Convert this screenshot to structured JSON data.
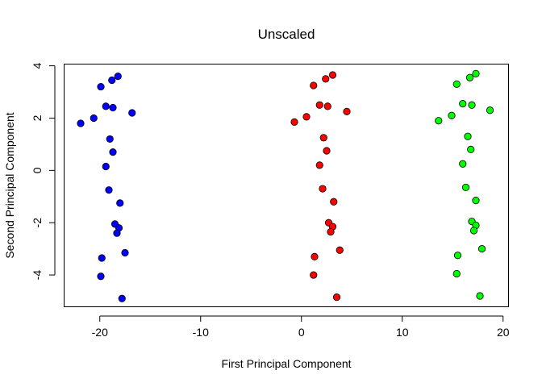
{
  "chart_data": {
    "type": "scatter",
    "title": "Unscaled",
    "xlabel": "First Principal Component",
    "ylabel": "Second Principal Component",
    "xlim": [
      -23.5,
      20.5
    ],
    "ylim": [
      -5.2,
      4.05
    ],
    "xticks": [
      -20,
      -10,
      0,
      10,
      20
    ],
    "yticks": [
      -4,
      -2,
      0,
      2,
      4
    ],
    "xtick_labels": [
      "-20",
      "-10",
      "0",
      "10",
      "20"
    ],
    "ytick_labels": [
      "-4",
      "-2",
      "0",
      "2",
      "4"
    ],
    "grid": false,
    "legend": "none",
    "series": [
      {
        "color": "#0000ff",
        "points": [
          [
            -18.2,
            3.6
          ],
          [
            -18.8,
            3.45
          ],
          [
            -19.9,
            3.2
          ],
          [
            -19.4,
            2.45
          ],
          [
            -18.7,
            2.4
          ],
          [
            -16.8,
            2.2
          ],
          [
            -20.6,
            2.0
          ],
          [
            -21.9,
            1.8
          ],
          [
            -19.0,
            1.2
          ],
          [
            -18.7,
            0.7
          ],
          [
            -19.4,
            0.15
          ],
          [
            -19.1,
            -0.75
          ],
          [
            -18.0,
            -1.25
          ],
          [
            -18.5,
            -2.05
          ],
          [
            -18.1,
            -2.2
          ],
          [
            -18.3,
            -2.4
          ],
          [
            -17.5,
            -3.15
          ],
          [
            -19.8,
            -3.35
          ],
          [
            -19.9,
            -4.05
          ],
          [
            -17.8,
            -4.9
          ]
        ]
      },
      {
        "color": "#ff0000",
        "points": [
          [
            3.1,
            3.65
          ],
          [
            2.4,
            3.5
          ],
          [
            1.2,
            3.25
          ],
          [
            1.8,
            2.5
          ],
          [
            2.6,
            2.45
          ],
          [
            4.5,
            2.25
          ],
          [
            0.5,
            2.05
          ],
          [
            -0.7,
            1.85
          ],
          [
            2.2,
            1.25
          ],
          [
            2.5,
            0.75
          ],
          [
            1.8,
            0.2
          ],
          [
            2.1,
            -0.7
          ],
          [
            3.2,
            -1.2
          ],
          [
            2.7,
            -2.0
          ],
          [
            3.1,
            -2.15
          ],
          [
            2.9,
            -2.35
          ],
          [
            3.8,
            -3.05
          ],
          [
            1.3,
            -3.3
          ],
          [
            1.2,
            -4.0
          ],
          [
            3.5,
            -4.85
          ]
        ]
      },
      {
        "color": "#00ff00",
        "points": [
          [
            17.3,
            3.7
          ],
          [
            16.7,
            3.55
          ],
          [
            15.4,
            3.3
          ],
          [
            16.0,
            2.55
          ],
          [
            16.9,
            2.5
          ],
          [
            18.7,
            2.3
          ],
          [
            14.9,
            2.1
          ],
          [
            13.6,
            1.9
          ],
          [
            16.5,
            1.3
          ],
          [
            16.8,
            0.8
          ],
          [
            16.0,
            0.25
          ],
          [
            16.3,
            -0.65
          ],
          [
            17.3,
            -1.15
          ],
          [
            16.9,
            -1.95
          ],
          [
            17.3,
            -2.1
          ],
          [
            17.1,
            -2.3
          ],
          [
            17.9,
            -3.0
          ],
          [
            15.5,
            -3.25
          ],
          [
            15.4,
            -3.95
          ],
          [
            17.7,
            -4.8
          ]
        ]
      }
    ]
  }
}
